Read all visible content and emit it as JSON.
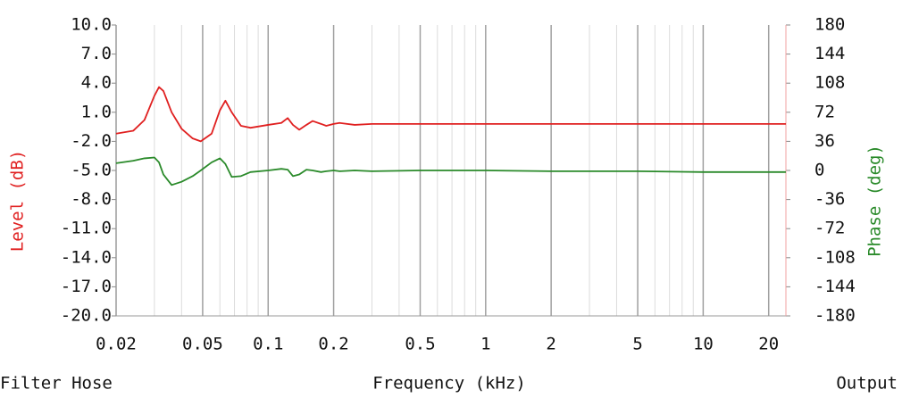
{
  "chart_data": {
    "type": "line",
    "x_label": "Frequency (kHz)",
    "y_label": "Level (dB)",
    "y2_label": "Phase (deg)",
    "x_log": true,
    "x": [
      0.02,
      0.024,
      0.027,
      0.03,
      0.0315,
      0.033,
      0.036,
      0.04,
      0.045,
      0.049,
      0.055,
      0.06,
      0.0636,
      0.068,
      0.075,
      0.083,
      0.1,
      0.115,
      0.123,
      0.13,
      0.139,
      0.15,
      0.16,
      0.175,
      0.185,
      0.2,
      0.213,
      0.25,
      0.3,
      0.5,
      1,
      2,
      5,
      10,
      20,
      24
    ],
    "series": [
      {
        "name": "Level",
        "color": "#e02020",
        "values": [
          -1.2,
          -0.9,
          0.2,
          2.7,
          3.6,
          3.2,
          1.0,
          -0.7,
          -1.7,
          -2.0,
          -1.2,
          1.2,
          2.2,
          1.0,
          -0.4,
          -0.6,
          -0.3,
          -0.1,
          0.4,
          -0.3,
          -0.8,
          -0.3,
          0.1,
          -0.2,
          -0.4,
          -0.2,
          -0.1,
          -0.3,
          -0.2,
          -0.2,
          -0.2,
          -0.2,
          -0.2,
          -0.2,
          -0.2,
          -0.2
        ]
      },
      {
        "name": "Phase",
        "color": "#2a8a2a",
        "axis": "y2",
        "values": [
          9,
          12,
          15,
          16,
          10,
          -5,
          -18,
          -14,
          -7,
          0,
          10,
          15,
          8,
          -8,
          -7,
          -2,
          0,
          2,
          1,
          -7,
          -5,
          1,
          0,
          -2,
          -1,
          0,
          -1,
          0,
          -1,
          0,
          0,
          -1,
          -1,
          -2,
          -2,
          -2
        ]
      }
    ],
    "xlim": [
      0.02,
      24
    ],
    "xticks": [
      0.02,
      0.05,
      0.1,
      0.2,
      0.5,
      1,
      2,
      5,
      10,
      20
    ],
    "ylim": [
      -20,
      10
    ],
    "yticks": [
      {
        "value": 10,
        "label": "10.0"
      },
      {
        "value": 7,
        "label": "7.0"
      },
      {
        "value": 4,
        "label": "4.0"
      },
      {
        "value": 1,
        "label": "1.0"
      },
      {
        "value": -2,
        "label": "-2.0"
      },
      {
        "value": -5,
        "label": "-5.0"
      },
      {
        "value": -8,
        "label": "-8.0"
      },
      {
        "value": -11,
        "label": "-11.0"
      },
      {
        "value": -14,
        "label": "-14.0"
      },
      {
        "value": -17,
        "label": "-17.0"
      },
      {
        "value": -20,
        "label": "-20.0"
      }
    ],
    "y2lim": [
      -180,
      180
    ],
    "y2ticks": [
      180,
      144,
      108,
      72,
      36,
      0,
      -36,
      -72,
      -108,
      -144,
      -180
    ],
    "y_label_color": "#e02020",
    "y2_label_color": "#2a8a2a"
  },
  "footer": {
    "left": "Filter Hose",
    "right": "Output"
  }
}
